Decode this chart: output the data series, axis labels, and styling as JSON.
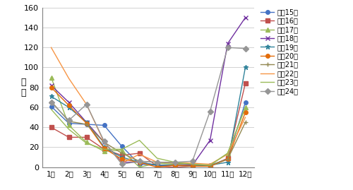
{
  "title": "",
  "ylabel": "件\n数",
  "xlabel": "",
  "ylim": [
    0,
    160
  ],
  "yticks": [
    0,
    20,
    40,
    60,
    80,
    100,
    120,
    140,
    160
  ],
  "months": [
    1,
    2,
    3,
    4,
    5,
    6,
    7,
    8,
    9,
    10,
    11,
    12
  ],
  "month_labels": [
    "1月",
    "2月",
    "3月",
    "4月",
    "5月",
    "6月",
    "7月",
    "8月",
    "9月",
    "10月",
    "11月",
    "12月"
  ],
  "series": [
    {
      "label": "平成15年",
      "color": "#4472C4",
      "marker": "o",
      "marker_size": 4,
      "values": [
        61,
        44,
        43,
        42,
        21,
        3,
        2,
        2,
        2,
        2,
        8,
        65
      ]
    },
    {
      "label": "平成16年",
      "color": "#C0504D",
      "marker": "s",
      "marker_size": 4,
      "values": [
        40,
        30,
        30,
        18,
        12,
        14,
        1,
        0,
        1,
        1,
        9,
        84
      ]
    },
    {
      "label": "平成17年",
      "color": "#9BBB59",
      "marker": "^",
      "marker_size": 4,
      "values": [
        90,
        42,
        25,
        16,
        17,
        0,
        4,
        3,
        2,
        2,
        14,
        60
      ]
    },
    {
      "label": "平成18年",
      "color": "#7030A0",
      "marker": "x",
      "marker_size": 5,
      "values": [
        82,
        65,
        45,
        25,
        5,
        5,
        2,
        2,
        2,
        27,
        124,
        150
      ]
    },
    {
      "label": "平成19年",
      "color": "#31849B",
      "marker": "*",
      "marker_size": 5,
      "values": [
        71,
        60,
        45,
        20,
        10,
        5,
        2,
        2,
        1,
        2,
        5,
        100
      ]
    },
    {
      "label": "平成20年",
      "color": "#E36C09",
      "marker": "o",
      "marker_size": 4,
      "values": [
        80,
        62,
        44,
        19,
        8,
        5,
        0,
        2,
        1,
        1,
        8,
        55
      ]
    },
    {
      "label": "平成21年",
      "color": "#938953",
      "marker": "+",
      "marker_size": 5,
      "values": [
        66,
        46,
        43,
        25,
        14,
        6,
        5,
        4,
        3,
        2,
        8,
        45
      ]
    },
    {
      "label": "平成22年",
      "color": "#F79646",
      "marker": "none",
      "marker_size": 4,
      "values": [
        120,
        89,
        63,
        25,
        4,
        13,
        5,
        5,
        4,
        3,
        13,
        50
      ]
    },
    {
      "label": "平成23年",
      "color": "#9BBB59",
      "marker": "none",
      "marker_size": 4,
      "values": [
        58,
        38,
        24,
        18,
        18,
        27,
        9,
        5,
        3,
        2,
        14,
        60
      ]
    },
    {
      "label": "平成24年",
      "color": "#969696",
      "marker": "D",
      "marker_size": 4,
      "values": [
        65,
        47,
        63,
        26,
        3,
        6,
        5,
        5,
        6,
        56,
        120,
        119
      ]
    }
  ],
  "background_color": "#FFFFFF",
  "grid_color": "#C0C0C0",
  "figsize": [
    5.0,
    2.69
  ],
  "dpi": 100
}
